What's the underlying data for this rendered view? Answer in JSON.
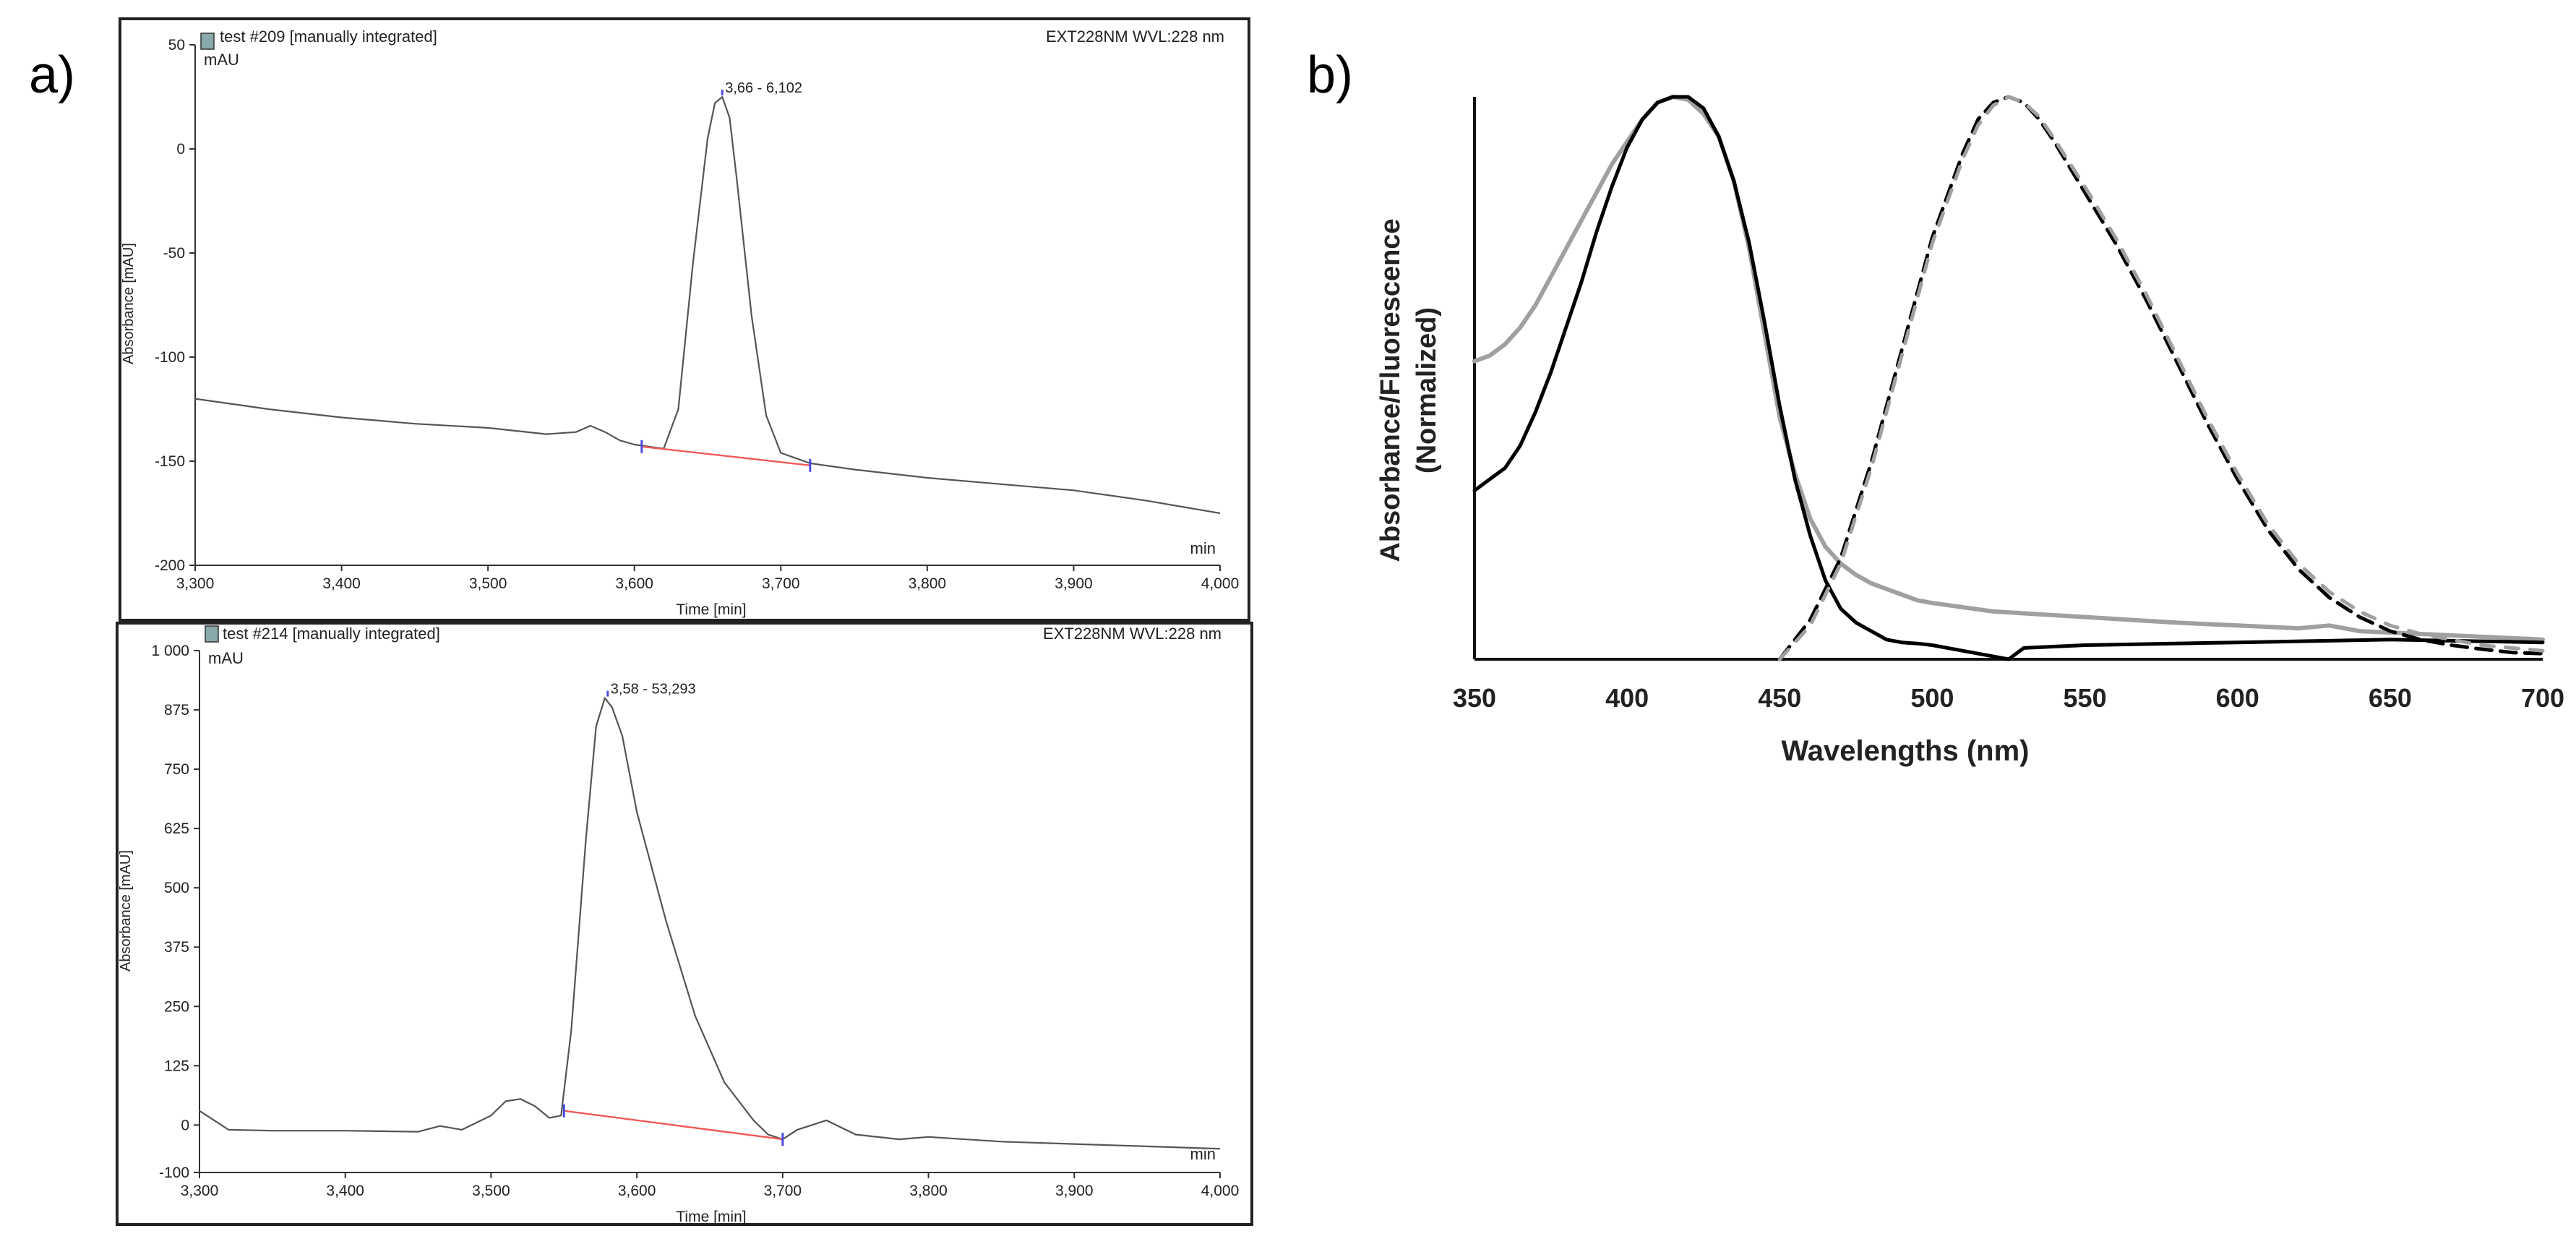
{
  "panel_labels": {
    "a": "a)",
    "b": "b)"
  },
  "colors": {
    "trace": "#555555",
    "baseline": "#f05a5a",
    "marker": "#4a4adc",
    "black_line": "#000000",
    "gray_line": "#a0a0a0",
    "frame": "#222222"
  },
  "chart_data": [
    {
      "id": "hplc_top",
      "type": "line",
      "header_left": "test #209 [manually integrated]",
      "header_right": "EXT228NM WVL:228 nm",
      "y_unit": "mAU",
      "ylabel": "Absorbance [mAU]",
      "xlabel": "Time [min]",
      "x_unit": "min",
      "xlim": [
        3.3,
        4.0
      ],
      "ylim": [
        -200,
        50
      ],
      "xticks": [
        3.3,
        3.4,
        3.5,
        3.6,
        3.7,
        3.8,
        3.9,
        4.0
      ],
      "xtick_labels": [
        "3,300",
        "3,400",
        "3,500",
        "3,600",
        "3,700",
        "3,800",
        "3,900",
        "4,000"
      ],
      "yticks": [
        50,
        0,
        -50,
        -100,
        -150,
        -200
      ],
      "ytick_labels": [
        "50",
        "0",
        "-50",
        "-100",
        "-150",
        "-200"
      ],
      "peak_label": "3,66 - 6,102",
      "peak": {
        "x": 3.66,
        "y": 25
      },
      "integration": {
        "start": [
          3.605,
          -143
        ],
        "end": [
          3.72,
          -152
        ]
      },
      "series": [
        {
          "name": "chromatogram",
          "x": [
            3.3,
            3.35,
            3.4,
            3.45,
            3.5,
            3.54,
            3.56,
            3.57,
            3.58,
            3.59,
            3.6,
            3.62,
            3.63,
            3.64,
            3.65,
            3.655,
            3.66,
            3.665,
            3.67,
            3.68,
            3.69,
            3.7,
            3.72,
            3.75,
            3.8,
            3.85,
            3.9,
            3.95,
            4.0
          ],
          "y": [
            -120,
            -125,
            -129,
            -132,
            -134,
            -137,
            -136,
            -133,
            -136,
            -140,
            -142,
            -144,
            -125,
            -55,
            5,
            22,
            25,
            15,
            -15,
            -80,
            -128,
            -146,
            -151,
            -154,
            -158,
            -161,
            -164,
            -169,
            -175
          ]
        }
      ]
    },
    {
      "id": "hplc_bottom",
      "type": "line",
      "header_left": "test #214 [manually integrated]",
      "header_right": "EXT228NM WVL:228 nm",
      "y_unit": "mAU",
      "ylabel": "Absorbance [mAU]",
      "xlabel": "Time [min]",
      "x_unit": "min",
      "xlim": [
        3.3,
        4.0
      ],
      "ylim": [
        -100,
        1000
      ],
      "xticks": [
        3.3,
        3.4,
        3.5,
        3.6,
        3.7,
        3.8,
        3.9,
        4.0
      ],
      "xtick_labels": [
        "3,300",
        "3,400",
        "3,500",
        "3,600",
        "3,700",
        "3,800",
        "3,900",
        "4,000"
      ],
      "yticks": [
        1000,
        875,
        750,
        625,
        500,
        375,
        250,
        125,
        0,
        -100
      ],
      "ytick_labels": [
        "1 000",
        "875",
        "750",
        "625",
        "500",
        "375",
        "250",
        "125",
        "0",
        "-100"
      ],
      "peak_label": "3,58 - 53,293",
      "peak": {
        "x": 3.58,
        "y": 900
      },
      "integration": {
        "start": [
          3.55,
          30
        ],
        "end": [
          3.7,
          -30
        ]
      },
      "series": [
        {
          "name": "chromatogram",
          "x": [
            3.3,
            3.32,
            3.35,
            3.4,
            3.45,
            3.465,
            3.48,
            3.5,
            3.51,
            3.52,
            3.53,
            3.54,
            3.548,
            3.555,
            3.565,
            3.572,
            3.578,
            3.583,
            3.59,
            3.6,
            3.62,
            3.64,
            3.66,
            3.68,
            3.69,
            3.7,
            3.71,
            3.73,
            3.75,
            3.78,
            3.8,
            3.85,
            3.9,
            3.95,
            4.0
          ],
          "y": [
            30,
            -10,
            -12,
            -12,
            -14,
            -2,
            -10,
            20,
            50,
            55,
            40,
            15,
            20,
            200,
            600,
            840,
            900,
            880,
            820,
            660,
            430,
            230,
            90,
            10,
            -20,
            -30,
            -10,
            10,
            -20,
            -30,
            -25,
            -35,
            -40,
            -45,
            -50
          ]
        }
      ]
    },
    {
      "id": "spectra",
      "type": "line",
      "ylabel": "Absorbance/Fluorescence",
      "ylabel_line2": "(Normalized)",
      "xlabel": "Wavelengths (nm)",
      "xlim": [
        350,
        700
      ],
      "ylim": [
        0,
        1
      ],
      "xticks": [
        350,
        400,
        450,
        500,
        550,
        600,
        650,
        700
      ],
      "xtick_labels": [
        "350",
        "400",
        "450",
        "500",
        "550",
        "600",
        "650",
        "700"
      ],
      "grid": false,
      "series": [
        {
          "name": "absorbance-gray",
          "style": "solid-gray",
          "x": [
            350,
            355,
            360,
            365,
            370,
            375,
            380,
            385,
            390,
            395,
            400,
            405,
            410,
            415,
            420,
            425,
            430,
            435,
            440,
            445,
            450,
            455,
            460,
            465,
            470,
            475,
            480,
            485,
            490,
            495,
            500,
            520,
            550,
            580,
            600,
            620,
            630,
            640,
            660,
            680,
            700
          ],
          "y": [
            0.53,
            0.54,
            0.56,
            0.59,
            0.63,
            0.68,
            0.73,
            0.78,
            0.83,
            0.88,
            0.92,
            0.96,
            0.99,
            1.0,
            0.995,
            0.97,
            0.93,
            0.85,
            0.73,
            0.58,
            0.43,
            0.33,
            0.25,
            0.2,
            0.17,
            0.15,
            0.135,
            0.125,
            0.115,
            0.105,
            0.1,
            0.085,
            0.075,
            0.065,
            0.06,
            0.055,
            0.06,
            0.05,
            0.045,
            0.04,
            0.035
          ]
        },
        {
          "name": "absorbance-black",
          "style": "solid-black",
          "x": [
            350,
            355,
            360,
            365,
            370,
            375,
            380,
            385,
            390,
            395,
            400,
            405,
            410,
            415,
            420,
            425,
            430,
            435,
            440,
            445,
            450,
            455,
            460,
            465,
            470,
            475,
            480,
            485,
            490,
            495,
            500,
            510,
            520,
            525,
            530,
            550,
            600,
            650,
            700
          ],
          "y": [
            0.3,
            0.32,
            0.34,
            0.38,
            0.44,
            0.51,
            0.59,
            0.67,
            0.76,
            0.84,
            0.91,
            0.96,
            0.99,
            1.0,
            1.0,
            0.98,
            0.93,
            0.85,
            0.74,
            0.6,
            0.45,
            0.32,
            0.22,
            0.14,
            0.09,
            0.065,
            0.05,
            0.035,
            0.03,
            0.028,
            0.025,
            0.015,
            0.005,
            0.0,
            0.02,
            0.025,
            0.03,
            0.035,
            0.03
          ]
        },
        {
          "name": "fluorescence-black-dashed",
          "style": "dashed-black",
          "x": [
            450,
            460,
            470,
            480,
            490,
            500,
            510,
            515,
            520,
            525,
            530,
            535,
            540,
            550,
            560,
            570,
            580,
            590,
            600,
            610,
            620,
            630,
            640,
            650,
            660,
            670,
            680,
            690,
            700
          ],
          "y": [
            0.0,
            0.07,
            0.18,
            0.35,
            0.55,
            0.75,
            0.9,
            0.96,
            0.99,
            1.0,
            0.99,
            0.96,
            0.92,
            0.83,
            0.74,
            0.64,
            0.53,
            0.42,
            0.32,
            0.23,
            0.16,
            0.11,
            0.075,
            0.05,
            0.035,
            0.025,
            0.018,
            0.012,
            0.01
          ]
        },
        {
          "name": "fluorescence-gray-dashed",
          "style": "dashed-gray",
          "x": [
            450,
            460,
            470,
            480,
            490,
            500,
            510,
            515,
            520,
            525,
            530,
            535,
            540,
            550,
            560,
            570,
            580,
            590,
            600,
            610,
            620,
            630,
            640,
            650,
            660,
            670,
            680,
            690,
            700
          ],
          "y": [
            0.0,
            0.06,
            0.17,
            0.34,
            0.54,
            0.74,
            0.89,
            0.95,
            0.985,
            1.0,
            0.99,
            0.965,
            0.925,
            0.84,
            0.75,
            0.65,
            0.54,
            0.43,
            0.33,
            0.24,
            0.17,
            0.12,
            0.085,
            0.06,
            0.045,
            0.035,
            0.025,
            0.02,
            0.015
          ]
        }
      ]
    }
  ]
}
